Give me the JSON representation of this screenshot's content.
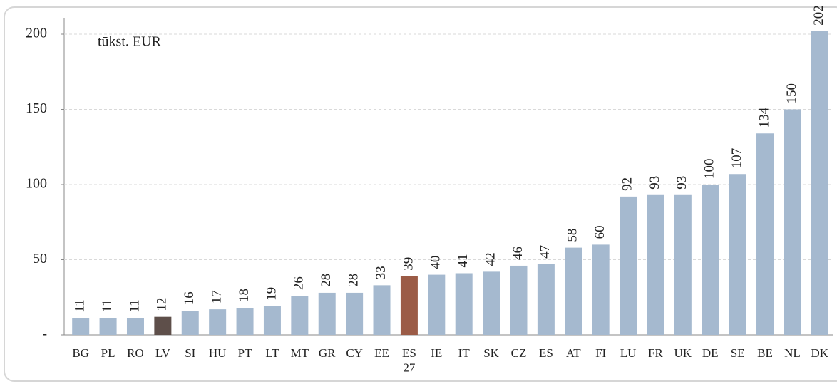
{
  "chart_data": {
    "type": "bar",
    "annotation": "tūkst. EUR",
    "categories": [
      "BG",
      "PL",
      "RO",
      "LV",
      "SI",
      "HU",
      "PT",
      "LT",
      "MT",
      "GR",
      "CY",
      "EE",
      "ES\n27",
      "IE",
      "IT",
      "SK",
      "CZ",
      "ES",
      "AT",
      "FI",
      "LU",
      "FR",
      "UK",
      "DE",
      "SE",
      "BE",
      "NL",
      "DK"
    ],
    "values": [
      11,
      11,
      11,
      12,
      16,
      17,
      18,
      19,
      26,
      28,
      28,
      33,
      39,
      40,
      41,
      42,
      46,
      47,
      58,
      60,
      92,
      93,
      93,
      100,
      107,
      134,
      150,
      202
    ],
    "colors": [
      "#a5b9cf",
      "#a5b9cf",
      "#a5b9cf",
      "#5e4f4a",
      "#a5b9cf",
      "#a5b9cf",
      "#a5b9cf",
      "#a5b9cf",
      "#a5b9cf",
      "#a5b9cf",
      "#a5b9cf",
      "#a5b9cf",
      "#9b5b46",
      "#a5b9cf",
      "#a5b9cf",
      "#a5b9cf",
      "#a5b9cf",
      "#a5b9cf",
      "#a5b9cf",
      "#a5b9cf",
      "#a5b9cf",
      "#a5b9cf",
      "#a5b9cf",
      "#a5b9cf",
      "#a5b9cf",
      "#a5b9cf",
      "#a5b9cf",
      "#a5b9cf"
    ],
    "ylim": [
      0,
      200
    ],
    "yticks": [
      {
        "value": 0,
        "label": "-"
      },
      50,
      100,
      150,
      200
    ],
    "grid": true
  }
}
